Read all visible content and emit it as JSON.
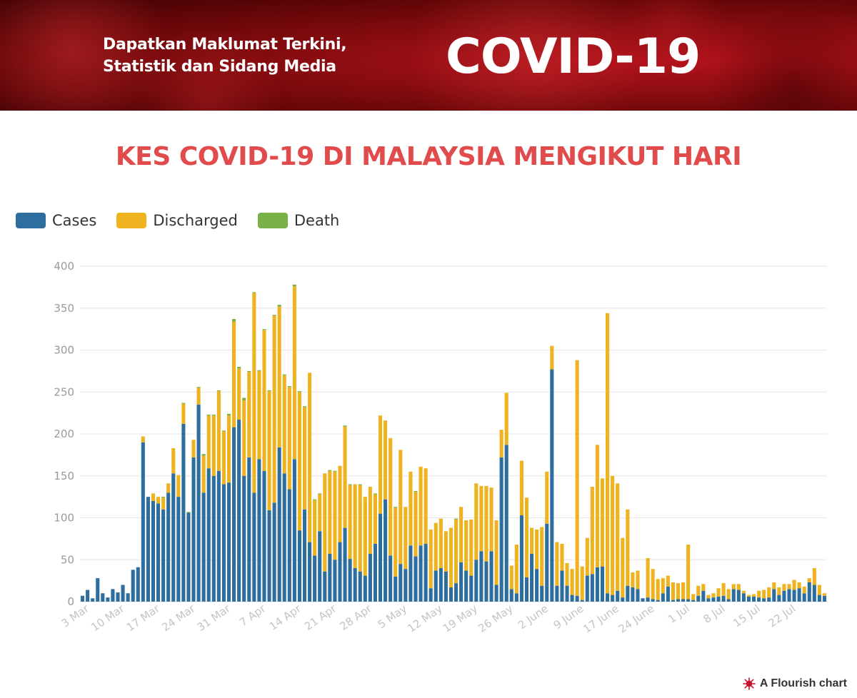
{
  "banner": {
    "subtitle_line1": "Dapatkan Maklumat Terkini,",
    "subtitle_line2": "Statistik dan Sidang Media",
    "title": "COVID-19"
  },
  "chart_title": "KES COVID-19 DI MALAYSIA MENGIKUT HARI",
  "attribution": "A Flourish chart",
  "colors": {
    "cases": "#2d6e9e",
    "discharged": "#eeb31f",
    "death": "#77b148",
    "title": "#e14b4b",
    "banner": "#8d0d12"
  },
  "chart_data": {
    "type": "bar",
    "stacked": true,
    "legend_position": "top-left",
    "grid": true,
    "ylim": [
      0,
      400
    ],
    "y_ticks": [
      0,
      50,
      100,
      150,
      200,
      250,
      300,
      350,
      400
    ],
    "x_tick_labels": [
      "3 Mar",
      "10 Mar",
      "17 Mar",
      "24 Mar",
      "31 Mar",
      "7 Apr",
      "14 Apr",
      "21 Apr",
      "28 Apr",
      "5 May",
      "12 May",
      "19 May",
      "26 May",
      "2 June",
      "9 June",
      "17 June",
      "24 June",
      "1 Jul",
      "8 Jul",
      "15 Jul",
      "22 Jul"
    ],
    "x_tick_indices": [
      0,
      7,
      14,
      21,
      28,
      35,
      42,
      49,
      56,
      63,
      70,
      77,
      84,
      91,
      98,
      105,
      112,
      119,
      126,
      133,
      140
    ],
    "start_date": "3 Mar",
    "series": [
      {
        "name": "Cases",
        "values": [
          7,
          14,
          4,
          28,
          10,
          5,
          15,
          11,
          20,
          10,
          38,
          41,
          190,
          125,
          120,
          117,
          110,
          130,
          153,
          125,
          212,
          106,
          172,
          235,
          130,
          159,
          150,
          156,
          140,
          142,
          208,
          217,
          150,
          172,
          130,
          170,
          156,
          109,
          118,
          184,
          153,
          134,
          170,
          85,
          110,
          71,
          55,
          84,
          36,
          57,
          50,
          71,
          88,
          51,
          40,
          36,
          31,
          57,
          69,
          105,
          122,
          55,
          30,
          45,
          39,
          67,
          54,
          67,
          69,
          16,
          37,
          40,
          36,
          17,
          22,
          47,
          37,
          31,
          50,
          60,
          48,
          60,
          20,
          172,
          187,
          15,
          10,
          103,
          29,
          57,
          39,
          19,
          93,
          277,
          19,
          37,
          19,
          8,
          7,
          2,
          31,
          33,
          41,
          42,
          10,
          8,
          13,
          5,
          19,
          17,
          15,
          4,
          5,
          3,
          2,
          10,
          18,
          2,
          3,
          3,
          3,
          2,
          7,
          13,
          4,
          5,
          6,
          7,
          3,
          15,
          14,
          10,
          6,
          6,
          5,
          4,
          5,
          15,
          8,
          13,
          15,
          14,
          16,
          10,
          23,
          20,
          8,
          7
        ]
      },
      {
        "name": "Discharged",
        "values": [
          0,
          0,
          0,
          0,
          0,
          0,
          0,
          0,
          0,
          0,
          0,
          0,
          7,
          0,
          9,
          8,
          14,
          11,
          30,
          26,
          24,
          0,
          21,
          20,
          44,
          63,
          72,
          95,
          63,
          80,
          126,
          61,
          90,
          102,
          238,
          105,
          168,
          142,
          223,
          168,
          117,
          122,
          206,
          165,
          122,
          202,
          66,
          44,
          117,
          99,
          105,
          91,
          121,
          88,
          100,
          103,
          94,
          80,
          59,
          117,
          94,
          140,
          82,
          136,
          74,
          88,
          77,
          94,
          90,
          70,
          57,
          59,
          48,
          71,
          76,
          66,
          60,
          67,
          91,
          78,
          90,
          76,
          77,
          33,
          62,
          28,
          58,
          65,
          95,
          31,
          47,
          70,
          62,
          28,
          52,
          32,
          27,
          31,
          281,
          40,
          45,
          104,
          146,
          105,
          334,
          142,
          128,
          71,
          91,
          18,
          22,
          0,
          47,
          36,
          25,
          18,
          13,
          21,
          19,
          20,
          65,
          7,
          12,
          8,
          4,
          5,
          10,
          15,
          12,
          6,
          7,
          3,
          2,
          3,
          8,
          10,
          12,
          8,
          9,
          8,
          6,
          12,
          7,
          8,
          5,
          20,
          12,
          3
        ]
      },
      {
        "name": "Death",
        "values": [
          0,
          0,
          0,
          0,
          0,
          0,
          0,
          0,
          0,
          0,
          0,
          0,
          0,
          0,
          0,
          0,
          1,
          0,
          0,
          0,
          1,
          1,
          0,
          1,
          2,
          1,
          1,
          1,
          1,
          2,
          3,
          2,
          3,
          1,
          1,
          1,
          1,
          1,
          1,
          2,
          1,
          1,
          2,
          1,
          1,
          0,
          1,
          1,
          0,
          1,
          1,
          0,
          1,
          1,
          0,
          1,
          0,
          0,
          1,
          0,
          0,
          0,
          1,
          0,
          0,
          0,
          1,
          0,
          0,
          0,
          0,
          0,
          0,
          0,
          1,
          0,
          0,
          0,
          0,
          0,
          0,
          0,
          0,
          0,
          0,
          0,
          0,
          0,
          0,
          0,
          0,
          0,
          0,
          0,
          0,
          0,
          0,
          0,
          0,
          0,
          0,
          0,
          0,
          0,
          0,
          0,
          0,
          0,
          0,
          0,
          0,
          0,
          0,
          0,
          0,
          0,
          0,
          0,
          0,
          0,
          0,
          0,
          0,
          0,
          0,
          0,
          0,
          0,
          0,
          0,
          0,
          0,
          0,
          0,
          0,
          0,
          0,
          0,
          0,
          0,
          0,
          0,
          0,
          0,
          0,
          0,
          0,
          0
        ]
      }
    ]
  }
}
